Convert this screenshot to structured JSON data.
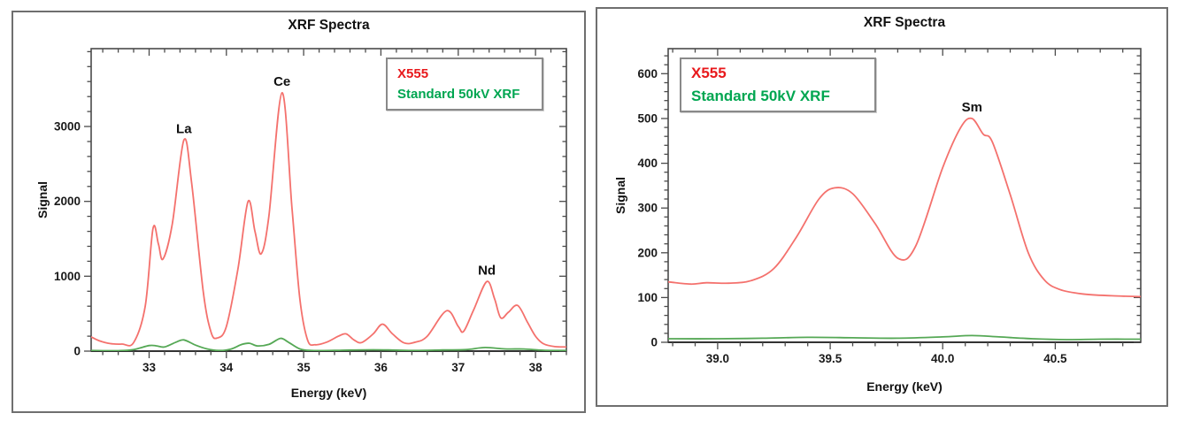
{
  "figure": {
    "panel_count": 2,
    "colors": {
      "x555_legend": "#e8191c",
      "x555_line": "#f4716d",
      "standard_legend": "#00a651",
      "standard_line": "#55a855",
      "axis": "#4a4a4a",
      "text": "#111111"
    }
  },
  "chart_data": [
    {
      "type": "line",
      "title": "XRF Spectra",
      "xlabel": "Energy (keV)",
      "ylabel": "Signal",
      "grid": false,
      "legend_position": "top-right-inside",
      "xlim": [
        32.25,
        38.4
      ],
      "ylim": [
        0,
        4040
      ],
      "x_ticks": {
        "major": [
          33,
          34,
          35,
          36,
          37,
          38
        ],
        "labels": [
          "33",
          "34",
          "35",
          "36",
          "37",
          "38"
        ],
        "minor_step": 0.2
      },
      "y_ticks": {
        "major": [
          0,
          1000,
          2000,
          3000
        ],
        "labels": [
          "0",
          "1000",
          "2000",
          "3000"
        ],
        "minor_step": 200
      },
      "annotations": [
        {
          "text": "La",
          "x": 33.45,
          "y": 2820
        },
        {
          "text": "Ce",
          "x": 34.72,
          "y": 3450
        },
        {
          "text": "Nd",
          "x": 37.37,
          "y": 930
        }
      ],
      "series": [
        {
          "name": "X555",
          "legend_color": "#e8191c",
          "line_color": "#f4716d",
          "points": [
            [
              32.25,
              190
            ],
            [
              32.35,
              140
            ],
            [
              32.5,
              100
            ],
            [
              32.65,
              95
            ],
            [
              32.8,
              115
            ],
            [
              32.95,
              600
            ],
            [
              33.05,
              1640
            ],
            [
              33.12,
              1430
            ],
            [
              33.18,
              1230
            ],
            [
              33.3,
              1700
            ],
            [
              33.45,
              2820
            ],
            [
              33.55,
              2250
            ],
            [
              33.7,
              800
            ],
            [
              33.8,
              260
            ],
            [
              33.88,
              175
            ],
            [
              34.0,
              330
            ],
            [
              34.15,
              1100
            ],
            [
              34.28,
              2000
            ],
            [
              34.37,
              1600
            ],
            [
              34.45,
              1300
            ],
            [
              34.55,
              1800
            ],
            [
              34.72,
              3450
            ],
            [
              34.85,
              1900
            ],
            [
              34.95,
              700
            ],
            [
              35.05,
              150
            ],
            [
              35.15,
              85
            ],
            [
              35.3,
              120
            ],
            [
              35.45,
              200
            ],
            [
              35.55,
              230
            ],
            [
              35.65,
              150
            ],
            [
              35.75,
              115
            ],
            [
              35.9,
              230
            ],
            [
              36.02,
              360
            ],
            [
              36.15,
              230
            ],
            [
              36.3,
              110
            ],
            [
              36.45,
              120
            ],
            [
              36.6,
              200
            ],
            [
              36.85,
              540
            ],
            [
              37.0,
              330
            ],
            [
              37.07,
              265
            ],
            [
              37.2,
              550
            ],
            [
              37.37,
              930
            ],
            [
              37.47,
              700
            ],
            [
              37.55,
              445
            ],
            [
              37.65,
              520
            ],
            [
              37.77,
              610
            ],
            [
              37.9,
              380
            ],
            [
              38.0,
              200
            ],
            [
              38.1,
              100
            ],
            [
              38.25,
              60
            ],
            [
              38.4,
              55
            ]
          ]
        },
        {
          "name": "Standard 50kV XRF",
          "legend_color": "#00a651",
          "line_color": "#55a855",
          "points": [
            [
              32.25,
              8
            ],
            [
              32.6,
              6
            ],
            [
              32.8,
              20
            ],
            [
              33.0,
              75
            ],
            [
              33.1,
              70
            ],
            [
              33.2,
              55
            ],
            [
              33.35,
              120
            ],
            [
              33.45,
              150
            ],
            [
              33.6,
              80
            ],
            [
              33.75,
              30
            ],
            [
              33.9,
              8
            ],
            [
              34.05,
              25
            ],
            [
              34.2,
              90
            ],
            [
              34.3,
              105
            ],
            [
              34.4,
              70
            ],
            [
              34.55,
              90
            ],
            [
              34.7,
              170
            ],
            [
              34.8,
              120
            ],
            [
              34.95,
              30
            ],
            [
              35.1,
              8
            ],
            [
              35.4,
              10
            ],
            [
              35.6,
              14
            ],
            [
              35.9,
              18
            ],
            [
              36.1,
              15
            ],
            [
              36.4,
              8
            ],
            [
              36.8,
              15
            ],
            [
              37.1,
              20
            ],
            [
              37.35,
              48
            ],
            [
              37.6,
              30
            ],
            [
              37.85,
              28
            ],
            [
              38.1,
              12
            ],
            [
              38.4,
              8
            ]
          ]
        }
      ]
    },
    {
      "type": "line",
      "title": "XRF Spectra",
      "xlabel": "Energy (keV)",
      "ylabel": "Signal",
      "grid": false,
      "legend_position": "top-left-inside",
      "xlim": [
        38.78,
        40.88
      ],
      "ylim": [
        0,
        656
      ],
      "x_ticks": {
        "major": [
          39.0,
          39.5,
          40.0,
          40.5
        ],
        "labels": [
          "39.0",
          "39.5",
          "40.0",
          "40.5"
        ],
        "minor_step": 0.1
      },
      "y_ticks": {
        "major": [
          0,
          100,
          200,
          300,
          400,
          500,
          600
        ],
        "labels": [
          "0",
          "100",
          "200",
          "300",
          "400",
          "500",
          "600"
        ],
        "minor_step": 20
      },
      "annotations": [
        {
          "text": "Sm",
          "x": 40.13,
          "y": 500
        }
      ],
      "series": [
        {
          "name": "X555",
          "legend_color": "#e8191c",
          "line_color": "#f4716d",
          "points": [
            [
              38.78,
              135
            ],
            [
              38.88,
              130
            ],
            [
              38.95,
              133
            ],
            [
              39.05,
              132
            ],
            [
              39.15,
              138
            ],
            [
              39.25,
              165
            ],
            [
              39.35,
              235
            ],
            [
              39.45,
              320
            ],
            [
              39.52,
              345
            ],
            [
              39.6,
              332
            ],
            [
              39.7,
              265
            ],
            [
              39.8,
              188
            ],
            [
              39.88,
              215
            ],
            [
              40.0,
              390
            ],
            [
              40.08,
              480
            ],
            [
              40.13,
              500
            ],
            [
              40.18,
              465
            ],
            [
              40.22,
              448
            ],
            [
              40.3,
              330
            ],
            [
              40.38,
              200
            ],
            [
              40.45,
              140
            ],
            [
              40.52,
              118
            ],
            [
              40.62,
              108
            ],
            [
              40.75,
              104
            ],
            [
              40.88,
              102
            ]
          ]
        },
        {
          "name": "Standard 50kV XRF",
          "legend_color": "#00a651",
          "line_color": "#55a855",
          "points": [
            [
              38.78,
              8
            ],
            [
              39.0,
              8
            ],
            [
              39.2,
              9
            ],
            [
              39.4,
              11
            ],
            [
              39.6,
              10
            ],
            [
              39.8,
              9
            ],
            [
              40.0,
              12
            ],
            [
              40.13,
              15
            ],
            [
              40.25,
              12
            ],
            [
              40.4,
              8
            ],
            [
              40.55,
              6
            ],
            [
              40.7,
              7
            ],
            [
              40.88,
              7
            ]
          ]
        }
      ]
    }
  ]
}
